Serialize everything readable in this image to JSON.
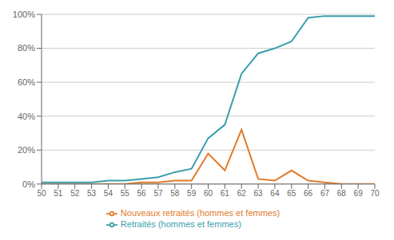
{
  "chart_data": {
    "type": "line",
    "x": [
      50,
      51,
      52,
      53,
      54,
      55,
      56,
      57,
      58,
      59,
      60,
      61,
      62,
      63,
      64,
      65,
      66,
      67,
      68,
      69,
      70
    ],
    "series": [
      {
        "name": "Nouveaux retraités (hommes et femmes)",
        "color": "#e07b2a",
        "values": [
          0,
          0,
          0,
          0,
          0,
          0,
          1,
          1,
          2,
          2,
          18,
          8,
          32,
          3,
          2,
          8,
          2,
          1,
          0,
          0,
          0
        ]
      },
      {
        "name": "Retraités (hommes et femmes)",
        "color": "#3a9eab",
        "values": [
          1,
          1,
          1,
          1,
          2,
          2,
          3,
          4,
          7,
          9,
          27,
          35,
          65,
          77,
          80,
          84,
          98,
          99,
          99,
          99,
          99
        ]
      }
    ],
    "xlim": [
      50,
      70
    ],
    "xticks": [
      50,
      51,
      52,
      53,
      54,
      55,
      56,
      57,
      58,
      59,
      60,
      61,
      62,
      63,
      64,
      65,
      66,
      67,
      68,
      69,
      70
    ],
    "ylim": [
      0,
      100
    ],
    "yticks": [
      {
        "value": 0,
        "label": "0%"
      },
      {
        "value": 20,
        "label": "20%"
      },
      {
        "value": 40,
        "label": "40%"
      },
      {
        "value": 60,
        "label": "60%"
      },
      {
        "value": 80,
        "label": "80%"
      },
      {
        "value": 100,
        "label": "100%"
      }
    ],
    "grid": "y",
    "legend": "bottom"
  }
}
